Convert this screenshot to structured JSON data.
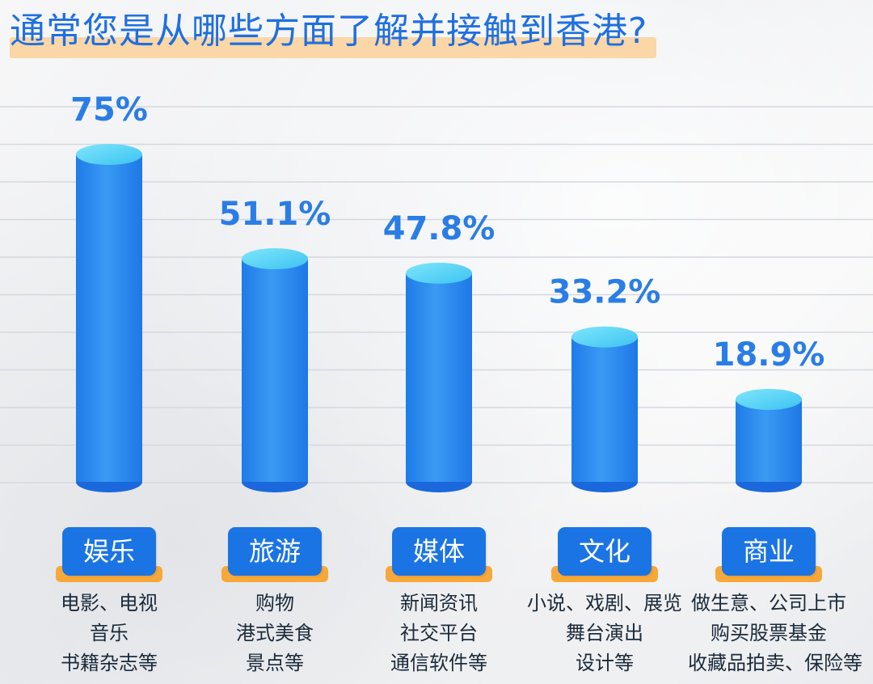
{
  "title": "通常您是从哪些方面了解并接触到香港?",
  "colors": {
    "title": "#1f6fe0",
    "title_highlight": "#fbd6a6",
    "bar_top": "#5fd6f7",
    "bar_body": "#2d8cf0",
    "tab": "#1b74e4",
    "tab_shadow": "#f7a83a",
    "percent": "#2a7de6"
  },
  "chart_data": {
    "type": "bar",
    "title": "通常您是从哪些方面了解并接触到香港?",
    "categories": [
      "娱乐",
      "旅游",
      "媒体",
      "文化",
      "商业"
    ],
    "values": [
      75,
      51.1,
      47.8,
      33.2,
      18.9
    ],
    "value_labels": [
      "75%",
      "51.1%",
      "47.8%",
      "33.2%",
      "18.9%"
    ],
    "unit": "%",
    "xlabel": "",
    "ylabel": "",
    "ylim": [
      0,
      100
    ],
    "grid": true,
    "descriptions": [
      [
        "电影、电视",
        "音乐",
        "书籍杂志等"
      ],
      [
        "购物",
        "港式美食",
        "景点等"
      ],
      [
        "新闻资讯",
        "社交平台",
        "通信软件等"
      ],
      [
        "小说、戏剧、展览",
        "舞台演出",
        "设计等"
      ],
      [
        "做生意、公司上市",
        "购买股票基金",
        "收藏品拍卖、保险等"
      ]
    ]
  }
}
